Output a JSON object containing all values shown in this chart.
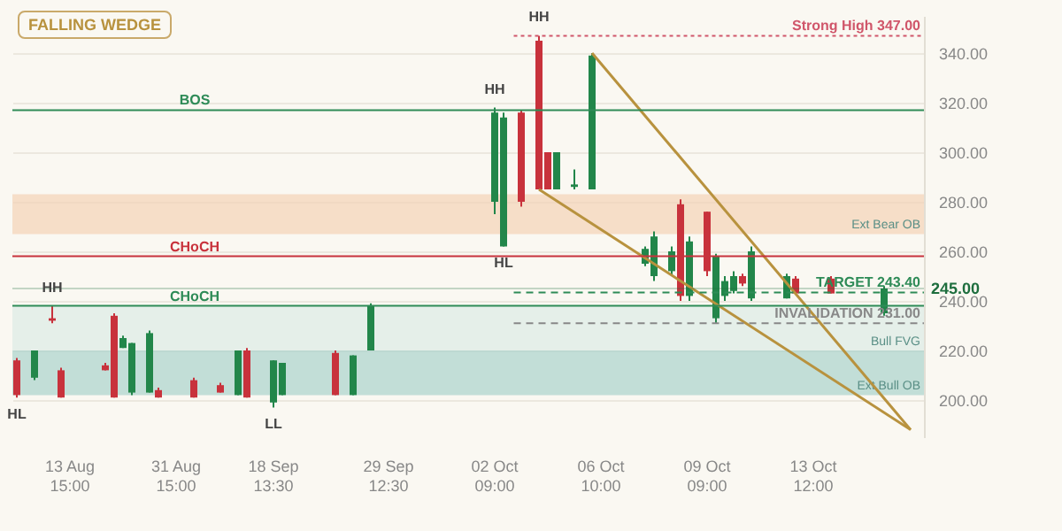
{
  "chart_data": {
    "type": "candlestick",
    "title": "FALLING WEDGE",
    "categories": [
      null,
      null,
      null,
      null,
      null,
      null,
      "13 Aug\n15:00",
      null,
      null,
      null,
      null,
      null,
      null,
      null,
      null,
      null,
      null,
      null,
      "31 Aug\n15:00",
      null,
      null,
      null,
      null,
      null,
      null,
      null,
      null,
      null,
      null,
      "18 Sep\n13:30",
      null,
      null,
      null,
      null,
      null,
      null,
      null,
      null,
      null,
      null,
      null,
      null,
      "29 Sep\n12:30",
      null,
      null,
      null,
      null,
      null,
      null,
      null,
      null,
      null,
      null,
      null,
      "02 Oct\n09:00",
      null,
      null,
      null,
      null,
      null,
      null,
      null,
      null,
      null,
      null,
      null,
      "06 Oct\n10:00",
      null,
      null,
      null,
      null,
      null,
      null,
      null,
      null,
      null,
      null,
      null,
      "09 Oct\n09:00",
      null,
      null,
      null,
      null,
      null,
      null,
      null,
      null,
      null,
      null,
      null,
      "13 Oct\n12:00",
      null,
      null,
      null,
      null,
      null,
      null,
      null,
      null,
      null,
      null,
      null,
      null
    ],
    "ohlc": [
      [
        216,
        217,
        201,
        202
      ],
      null,
      [
        209,
        220,
        208,
        220
      ],
      null,
      [
        233,
        238,
        231,
        232
      ],
      [
        212,
        213,
        201,
        201
      ],
      null,
      null,
      null,
      null,
      [
        214,
        215,
        212,
        212
      ],
      [
        234,
        235,
        201,
        201
      ],
      [
        221,
        226,
        221,
        225
      ],
      [
        203,
        223,
        202,
        223
      ],
      null,
      [
        203,
        228,
        203,
        227
      ],
      [
        204,
        205,
        201,
        201
      ],
      null,
      null,
      null,
      [
        208,
        209,
        201,
        201
      ],
      null,
      null,
      [
        206,
        207,
        203,
        203
      ],
      null,
      [
        202,
        220,
        202,
        220
      ],
      [
        220,
        221,
        201,
        201
      ],
      null,
      null,
      [
        199,
        216,
        197,
        216
      ],
      [
        202,
        215,
        202,
        215
      ],
      null,
      null,
      null,
      null,
      null,
      [
        219,
        220,
        202,
        202
      ],
      null,
      [
        202,
        218,
        202,
        218
      ],
      null,
      [
        220,
        239,
        220,
        238
      ],
      null,
      null,
      null,
      null,
      null,
      null,
      null,
      null,
      null,
      null,
      null,
      null,
      null,
      [
        280,
        318,
        275,
        316
      ],
      [
        262,
        316,
        262,
        314
      ],
      null,
      [
        316,
        317,
        278,
        280
      ],
      null,
      [
        345,
        347,
        285,
        285
      ],
      [
        300,
        300,
        285,
        285
      ],
      [
        285,
        300,
        285,
        300
      ],
      null,
      [
        286,
        293,
        285,
        287
      ],
      null,
      [
        285,
        340,
        285,
        339
      ],
      null,
      null,
      null,
      null,
      null,
      [
        255,
        262,
        254,
        261
      ],
      [
        250,
        268,
        248,
        266
      ],
      null,
      [
        252,
        262,
        250,
        260
      ],
      [
        279,
        281,
        240,
        242
      ],
      [
        242,
        266,
        240,
        264
      ],
      null,
      [
        276,
        276,
        250,
        252
      ],
      [
        233,
        259,
        231,
        258
      ],
      [
        242,
        250,
        240,
        248
      ],
      [
        244,
        252,
        243,
        250
      ],
      [
        250,
        251,
        246,
        247
      ],
      [
        241,
        262,
        240,
        260
      ],
      null,
      null,
      null,
      [
        241,
        251,
        241,
        250
      ],
      [
        249,
        250,
        243,
        243
      ],
      null,
      null,
      null,
      [
        249,
        250,
        243,
        243
      ],
      null,
      null,
      null,
      null,
      null,
      [
        235,
        246,
        234,
        245
      ],
      null,
      null,
      null,
      null
    ],
    "series": [
      {
        "type": "line",
        "color": "#b8923e",
        "values": [
          null,
          null,
          null,
          null,
          null,
          null,
          null,
          null,
          null,
          null,
          null,
          null,
          null,
          null,
          null,
          null,
          null,
          null,
          null,
          null,
          null,
          null,
          null,
          null,
          null,
          null,
          null,
          null,
          null,
          null,
          null,
          null,
          null,
          null,
          null,
          null,
          null,
          null,
          null,
          null,
          null,
          null,
          null,
          null,
          null,
          null,
          null,
          null,
          null,
          null,
          null,
          null,
          null,
          null,
          null,
          null,
          null,
          null,
          null,
          null,
          null,
          null,
          null,
          null,
          null,
          340,
          null,
          null,
          null,
          null,
          null,
          null,
          null,
          null,
          null,
          null,
          null,
          null,
          null,
          null,
          null,
          null,
          null,
          null,
          null,
          null,
          null,
          null,
          null,
          null,
          null,
          null,
          null,
          null,
          null,
          null,
          null,
          null,
          null,
          null,
          null,
          188,
          null
        ]
      },
      {
        "type": "line",
        "color": "#b8923e",
        "values": [
          null,
          null,
          null,
          null,
          null,
          null,
          null,
          null,
          null,
          null,
          null,
          null,
          null,
          null,
          null,
          null,
          null,
          null,
          null,
          null,
          null,
          null,
          null,
          null,
          null,
          null,
          null,
          null,
          null,
          null,
          null,
          null,
          null,
          null,
          null,
          null,
          null,
          null,
          null,
          null,
          null,
          null,
          null,
          null,
          null,
          null,
          null,
          null,
          null,
          null,
          null,
          null,
          null,
          null,
          null,
          null,
          null,
          null,
          null,
          285,
          null,
          null,
          null,
          null,
          null,
          null,
          null,
          null,
          null,
          null,
          null,
          null,
          null,
          null,
          null,
          null,
          null,
          null,
          null,
          null,
          null,
          null,
          null,
          null,
          null,
          null,
          null,
          null,
          null,
          null,
          null,
          null,
          null,
          null,
          null,
          null,
          null,
          null,
          null,
          null,
          null,
          188,
          null
        ]
      }
    ],
    "ylim": [
      185,
      355
    ],
    "yticks": [
      {
        "value": 200,
        "label": "200.00"
      },
      {
        "value": 220,
        "label": "220.00"
      },
      {
        "value": 240,
        "label": "240.00"
      },
      {
        "value": 260,
        "label": "260.00"
      },
      {
        "value": 280,
        "label": "280.00"
      },
      {
        "value": 300,
        "label": "300.00"
      },
      {
        "value": 320,
        "label": "320.00"
      },
      {
        "value": 340,
        "label": "340.00"
      }
    ],
    "grid": "y",
    "ref_lines": [
      {
        "axis": "y",
        "value": 347,
        "label": "Strong High 347.00",
        "color": "#d0566a",
        "line_style": "dotted"
      },
      {
        "axis": "y",
        "value": 243.4,
        "label": "TARGET 243.40",
        "color": "#2e8b57",
        "line_style": "dashed"
      },
      {
        "axis": "y",
        "value": 231,
        "label": "INVALIDATION 231.00",
        "color": "#888888",
        "line_style": "dashed"
      },
      {
        "axis": "y",
        "value": 317,
        "label": "BOS",
        "color": "#2e8b57",
        "line_style": "solid"
      },
      {
        "axis": "y",
        "value": 238,
        "label": "CHoCH",
        "color": "#2e8b57",
        "line_style": "solid"
      },
      {
        "axis": "y",
        "value": 258,
        "label": "CHoCH",
        "color": "#c8323c",
        "line_style": "solid"
      },
      {
        "axis": "y",
        "value": 245,
        "label": "245.00",
        "color": "#1e6e3e"
      }
    ],
    "bands": [
      {
        "axis": "y",
        "from": 220,
        "to": 238,
        "label": "Bull FVG",
        "color": "#dcebe6"
      },
      {
        "axis": "y",
        "from": 202,
        "to": 220,
        "label": "Ext Bull OB",
        "color": "#a9d3cc"
      },
      {
        "axis": "y",
        "from": 267,
        "to": 283,
        "label": "Ext Bear OB",
        "color": "#f3d3b6"
      }
    ],
    "annotations": [
      {
        "text": "HL",
        "y": 201
      },
      {
        "text": "HH",
        "y": 238
      },
      {
        "text": "LL",
        "y": 197
      },
      {
        "text": "HH",
        "y": 318
      },
      {
        "text": "HL",
        "y": 262
      },
      {
        "text": "HH",
        "y": 347
      }
    ]
  }
}
